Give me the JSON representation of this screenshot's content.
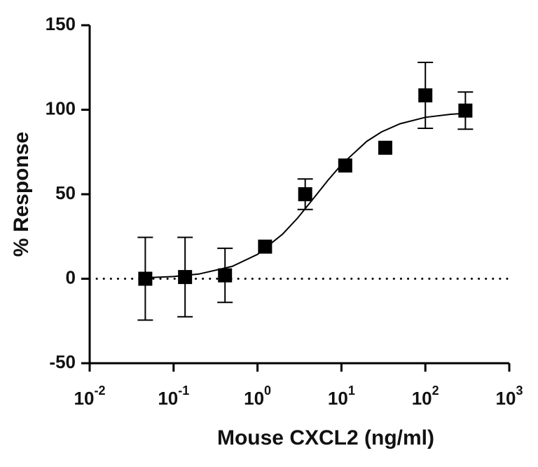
{
  "chart_data": {
    "type": "scatter",
    "x_label": "Mouse CXCL2 (ng/ml)",
    "y_label": "% Response",
    "xscale": "log",
    "xlim": [
      0.01,
      1000
    ],
    "xticks": [
      {
        "value": 0.01,
        "label": "10",
        "exponent": "-2"
      },
      {
        "value": 0.1,
        "label": "10",
        "exponent": "-1"
      },
      {
        "value": 1,
        "label": "10",
        "exponent": "0"
      },
      {
        "value": 10,
        "label": "10",
        "exponent": "1"
      },
      {
        "value": 100,
        "label": "10",
        "exponent": "2"
      },
      {
        "value": 1000,
        "label": "10",
        "exponent": "3"
      }
    ],
    "ylim": [
      -50,
      150
    ],
    "yticks": [
      -50,
      0,
      50,
      100,
      150
    ],
    "reference_line": 0,
    "x": [
      0.046,
      0.137,
      0.41,
      1.23,
      3.7,
      11.1,
      33.3,
      100,
      300
    ],
    "series": [
      {
        "color": "#000000",
        "marker": "square",
        "values": [
          0,
          1,
          2,
          19,
          50,
          67,
          77.5,
          108.5,
          99.5
        ],
        "errors": [
          24.5,
          23.5,
          16,
          null,
          9,
          null,
          null,
          19.5,
          11
        ]
      }
    ],
    "fit": {
      "color": "#000000",
      "x": [
        0.046,
        0.1,
        0.2,
        0.5,
        1,
        2,
        3,
        5,
        7,
        10,
        20,
        30,
        50,
        100,
        200,
        300
      ],
      "values": [
        0.6,
        1.3,
        2.8,
        7.3,
        14.4,
        26.5,
        35.9,
        49.5,
        58.6,
        67.5,
        81.3,
        86.9,
        91.7,
        95.5,
        97.3,
        97.9
      ]
    }
  }
}
